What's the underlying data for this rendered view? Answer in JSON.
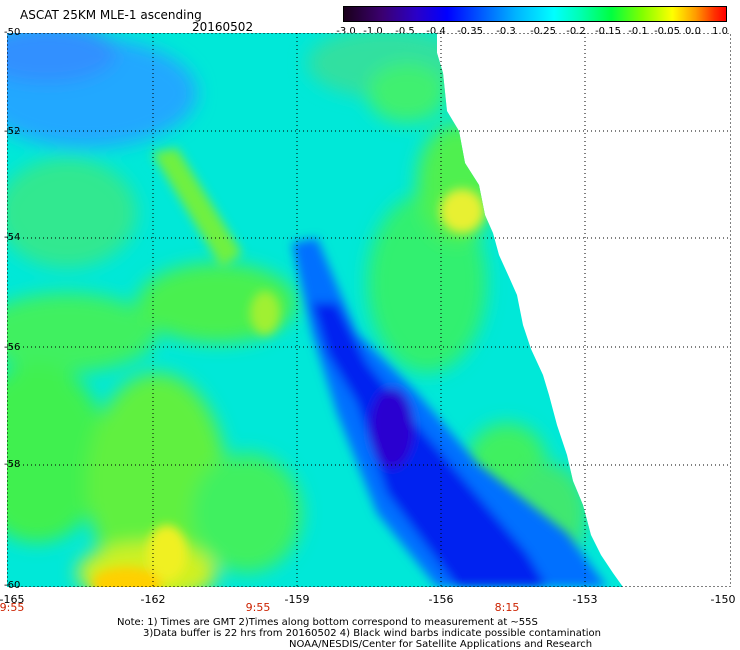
{
  "header": {
    "title": "ASCAT 25KM MLE-1 ascending",
    "date": "20160502"
  },
  "colorbar": {
    "labels": [
      "-3.0",
      "-1.0",
      "-0.5",
      "-0.4",
      "-0.35",
      "-0.3",
      "-0.25",
      "-0.2",
      "-0.15",
      "-0.1",
      "-0.05",
      "0.0",
      "1.0"
    ],
    "colors": [
      "#1a001a",
      "#3b0070",
      "#2a00c8",
      "#0000ff",
      "#0050ff",
      "#00b4ff",
      "#00ffff",
      "#00ffb0",
      "#00ff40",
      "#80ff00",
      "#ffff00",
      "#ff9c00",
      "#ff3000",
      "#ff0000"
    ]
  },
  "axes": {
    "lat_labels": [
      "-50",
      "-52",
      "-54",
      "-56",
      "-58",
      "-60"
    ],
    "lon_labels": [
      "-165",
      "-162",
      "-159",
      "-156",
      "-153",
      "-150"
    ],
    "time_labels": [
      "9:55",
      "9:55",
      "8:15"
    ],
    "grid": "dotted"
  },
  "notes": {
    "line1": "Note: 1) Times are GMT 2)Times along bottom correspond to measurement at ~55S",
    "line2": "3)Data buffer is 22 hrs from 20160502 4) Black wind barbs indicate possible contamination",
    "line3": "NOAA/NESDIS/Center for Satellite Applications and Research"
  }
}
